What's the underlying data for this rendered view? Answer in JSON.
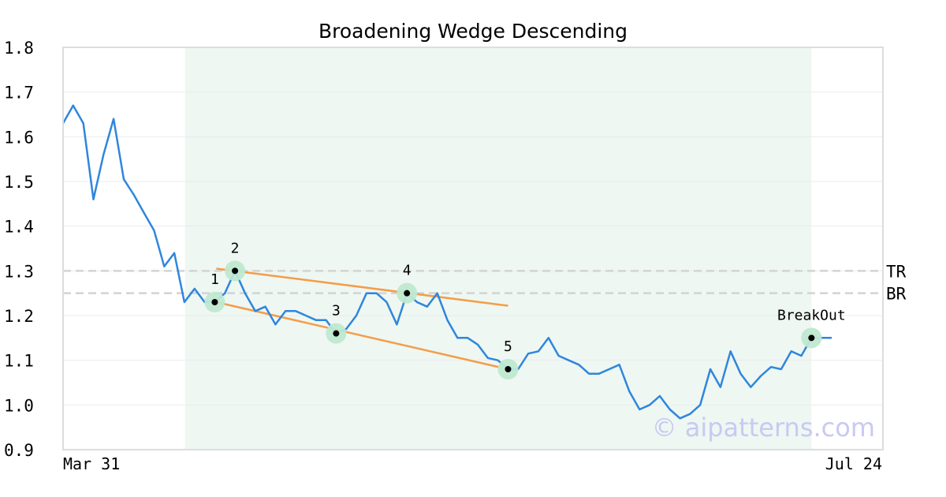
{
  "chart_data": {
    "type": "line",
    "title": "Broadening Wedge Descending",
    "ylim": [
      0.9,
      1.8
    ],
    "y_ticks": [
      "0.9",
      "1.0",
      "1.1",
      "1.2",
      "1.3",
      "1.4",
      "1.5",
      "1.6",
      "1.7",
      "1.8"
    ],
    "x_tick_labels": [
      "Mar 31",
      "Jul 24"
    ],
    "grid": true,
    "series": [
      {
        "values": [
          1.63,
          1.67,
          1.63,
          1.46,
          1.56,
          1.64,
          1.505,
          1.47,
          1.43,
          1.39,
          1.31,
          1.34,
          1.23,
          1.26,
          1.23,
          1.23,
          1.25,
          1.3,
          1.25,
          1.21,
          1.22,
          1.18,
          1.21,
          1.21,
          1.2,
          1.19,
          1.19,
          1.16,
          1.17,
          1.2,
          1.25,
          1.25,
          1.23,
          1.18,
          1.25,
          1.23,
          1.22,
          1.25,
          1.19,
          1.15,
          1.15,
          1.135,
          1.105,
          1.1,
          1.08,
          1.08,
          1.115,
          1.12,
          1.15,
          1.11,
          1.1,
          1.09,
          1.07,
          1.07,
          1.08,
          1.09,
          1.03,
          0.99,
          1.0,
          1.02,
          0.99,
          0.97,
          0.98,
          1.0,
          1.08,
          1.04,
          1.12,
          1.07,
          1.04,
          1.065,
          1.085,
          1.08,
          1.12,
          1.11,
          1.15,
          1.15,
          1.15
        ]
      }
    ],
    "pattern_region": {
      "start_index": 13,
      "end_index": 74,
      "color": "#eef7f2"
    },
    "pivots": [
      {
        "label": "1",
        "index": 15,
        "value": 1.23
      },
      {
        "label": "2",
        "index": 17,
        "value": 1.3
      },
      {
        "label": "3",
        "index": 27,
        "value": 1.16
      },
      {
        "label": "4",
        "index": 34,
        "value": 1.25
      },
      {
        "label": "5",
        "index": 44,
        "value": 1.08
      },
      {
        "label": "BreakOut",
        "index": 74,
        "value": 1.15
      }
    ],
    "trendlines": [
      {
        "from": {
          "index": 15,
          "value": 1.305
        },
        "to": {
          "index": 44,
          "value": 1.222
        }
      },
      {
        "from": {
          "index": 15,
          "value": 1.23
        },
        "to": {
          "index": 44,
          "value": 1.08
        }
      }
    ],
    "levels": [
      {
        "label": "TR",
        "value": 1.3
      },
      {
        "label": "BR",
        "value": 1.25
      }
    ],
    "colors": {
      "line": "#2f86dd",
      "trend": "#f59c48",
      "pivot_halo": "#bfe8d0",
      "pivot_dot": "#000000",
      "level": "#d3d3d3",
      "watermark": "#c9c9f2"
    },
    "watermark": "© aipatterns.com"
  }
}
